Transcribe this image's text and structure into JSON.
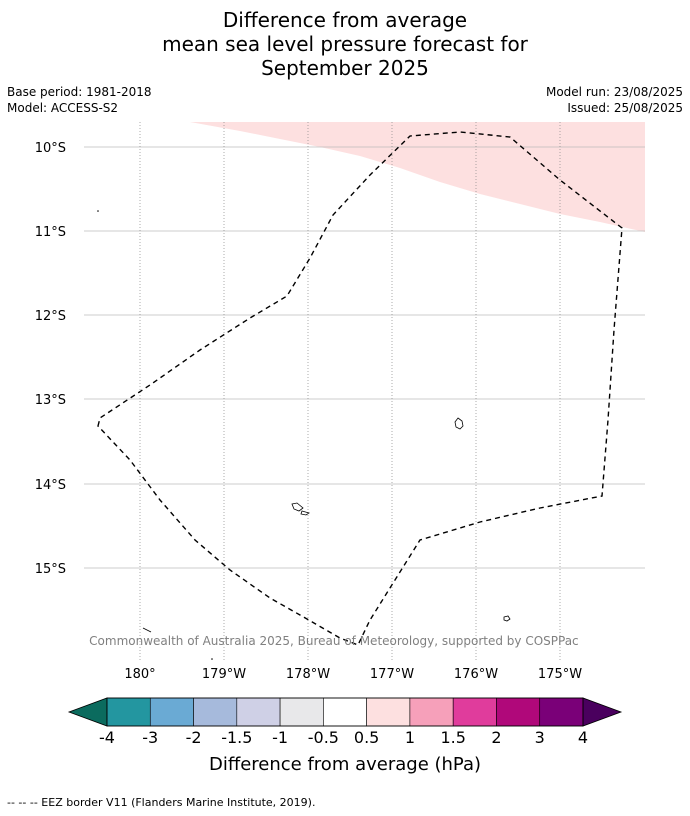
{
  "title": {
    "line1": "Difference from average",
    "line2": "mean sea level pressure forecast for",
    "line3": "September 2025"
  },
  "meta": {
    "base_period": "Base period: 1981-2018",
    "model": "Model: ACCESS-S2",
    "model_run": "Model run: 23/08/2025",
    "issued": "Issued: 25/08/2025"
  },
  "map": {
    "lat_labels": [
      "10°S",
      "11°S",
      "12°S",
      "13°S",
      "14°S",
      "15°S"
    ],
    "lon_labels": [
      "180°",
      "179°W",
      "178°W",
      "177°W",
      "176°W",
      "175°W"
    ],
    "copyright": "© Commonwealth of Australia 2025, Bureau of Meteorology, supported by COSPPac",
    "anomaly_region_category": "0.5 to 1",
    "anomaly_region_color": "#fde0e0",
    "boundary_style": "dashed"
  },
  "colorbar": {
    "colors": [
      "#0b6b5e",
      "#2396a0",
      "#6aaad4",
      "#a6badc",
      "#cfd0e6",
      "#e8e8ea",
      "#ffffff",
      "#fde0e0",
      "#f6a0ba",
      "#e03c9c",
      "#b0087a",
      "#7a0078",
      "#4a005e"
    ],
    "tick_labels": [
      "-4",
      "-3",
      "-2",
      "-1.5",
      "-1",
      "-0.5",
      "0.5",
      "1",
      "1.5",
      "2",
      "3",
      "4"
    ],
    "label": "Difference from average (hPa)"
  },
  "footer": "-- -- -- EEZ border V11 (Flanders Marine Institute, 2019)."
}
